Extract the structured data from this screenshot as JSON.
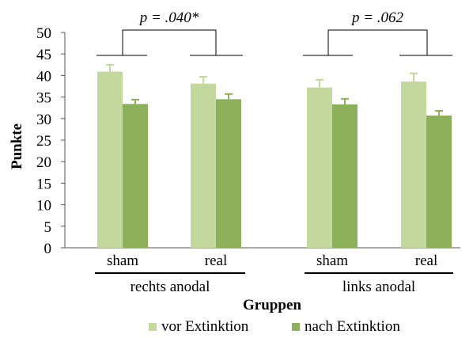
{
  "chart_data": {
    "type": "bar",
    "ylabel": "Punkte",
    "xlabel": "Gruppen",
    "ylim": [
      0,
      50
    ],
    "yticks": [
      0,
      5,
      10,
      15,
      20,
      25,
      30,
      35,
      40,
      45,
      50
    ],
    "grid": false,
    "legend_position": "bottom",
    "groups": [
      {
        "label": "rechts anodal",
        "significance": "p = .040*",
        "categories": [
          "sham",
          "real"
        ]
      },
      {
        "label": "links anodal",
        "significance": "p = .062",
        "categories": [
          "sham",
          "real"
        ]
      }
    ],
    "categories": [
      "sham",
      "real",
      "sham",
      "real"
    ],
    "series": [
      {
        "name": "vor Extinktion",
        "color": "#c3d89c",
        "values": [
          40.9,
          38.1,
          37.2,
          38.6
        ],
        "errors": [
          1.6,
          1.6,
          1.8,
          1.9
        ]
      },
      {
        "name": "nach Extinktion",
        "color": "#8db05a",
        "values": [
          33.4,
          34.5,
          33.3,
          30.7
        ],
        "errors": [
          1.0,
          1.2,
          1.3,
          1.1
        ]
      }
    ]
  }
}
